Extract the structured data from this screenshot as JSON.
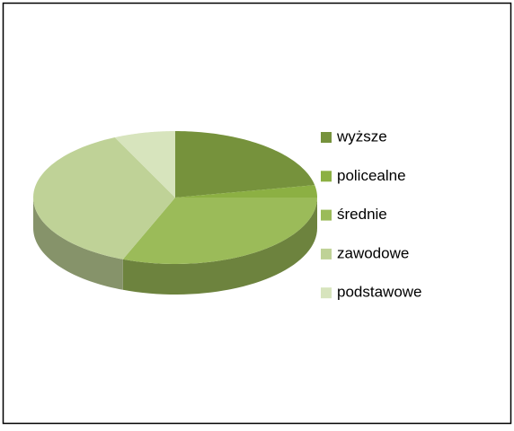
{
  "chart_data": {
    "type": "pie3d",
    "categories": [
      "wyższe",
      "policealne",
      "średnie",
      "zawodowe",
      "podstawowe"
    ],
    "values": [
      22,
      3,
      31,
      37,
      7
    ],
    "colors": [
      "#76923c",
      "#8cb043",
      "#9bbb59",
      "#bfd297",
      "#d7e4bd"
    ],
    "legend": "right"
  }
}
